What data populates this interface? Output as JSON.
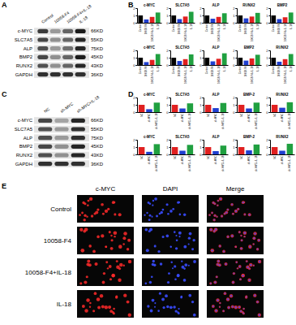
{
  "panel_labels": [
    "A",
    "B",
    "C",
    "D",
    "E"
  ],
  "chart_data": [
    {
      "type": "bar",
      "title": "c-MYC",
      "categories": [
        "Control",
        "10058-F4",
        "10058-F4+IL-18",
        "IL-18"
      ],
      "values": [
        1.0,
        0.45,
        0.8,
        1.4
      ],
      "colors": [
        "#000000",
        "#1f3fd0",
        "#e02020",
        "#20a040"
      ],
      "ylim": [
        0,
        2
      ],
      "yticks": [
        0,
        1,
        2
      ]
    },
    {
      "type": "bar",
      "title": "SLC7A5",
      "categories": [
        "Control",
        "10058-F4",
        "10058-F4+IL-18",
        "IL-18"
      ],
      "values": [
        1.0,
        0.5,
        0.85,
        1.5
      ],
      "colors": [
        "#000000",
        "#1f3fd0",
        "#e02020",
        "#20a040"
      ],
      "ylim": [
        0,
        2
      ],
      "yticks": [
        0,
        1,
        2
      ]
    },
    {
      "type": "bar",
      "title": "ALP",
      "categories": [
        "Control",
        "10058-F4",
        "10058-F4+IL-18",
        "IL-18"
      ],
      "values": [
        1.0,
        0.55,
        0.8,
        1.3
      ],
      "colors": [
        "#000000",
        "#1f3fd0",
        "#e02020",
        "#20a040"
      ],
      "ylim": [
        0,
        2
      ],
      "yticks": [
        0,
        1,
        2
      ]
    },
    {
      "type": "bar",
      "title": "RUNX2",
      "categories": [
        "Control",
        "10058-F4",
        "10058-F4+IL-18",
        "IL-18"
      ],
      "values": [
        1.0,
        0.6,
        0.85,
        1.35
      ],
      "colors": [
        "#000000",
        "#1f3fd0",
        "#e02020",
        "#20a040"
      ],
      "ylim": [
        0,
        2
      ],
      "yticks": [
        0,
        1,
        2
      ]
    },
    {
      "type": "bar",
      "title": "BMP2",
      "categories": [
        "Control",
        "10058-F4",
        "10058-F4+IL-18",
        "IL-18"
      ],
      "values": [
        1.0,
        0.5,
        0.75,
        1.4
      ],
      "colors": [
        "#000000",
        "#1f3fd0",
        "#e02020",
        "#20a040"
      ],
      "ylim": [
        0,
        2
      ],
      "yticks": [
        0,
        1,
        2
      ]
    },
    {
      "type": "bar",
      "title": "c-MYC",
      "categories": [
        "Control",
        "10058-F4",
        "10058-F4+IL-18",
        "IL-18"
      ],
      "values": [
        1.0,
        0.4,
        0.7,
        1.5
      ],
      "colors": [
        "#000000",
        "#1f3fd0",
        "#e02020",
        "#20a040"
      ],
      "ylim": [
        0,
        2
      ],
      "yticks": [
        0,
        1,
        2
      ]
    },
    {
      "type": "bar",
      "title": "SLC7A5",
      "categories": [
        "Control",
        "10058-F4",
        "10058-F4+IL-18",
        "IL-18"
      ],
      "values": [
        1.0,
        0.55,
        0.8,
        1.45
      ],
      "colors": [
        "#000000",
        "#1f3fd0",
        "#e02020",
        "#20a040"
      ],
      "ylim": [
        0,
        2
      ],
      "yticks": [
        0,
        1,
        2
      ]
    },
    {
      "type": "bar",
      "title": "ALP",
      "categories": [
        "Control",
        "10058-F4",
        "10058-F4+IL-18",
        "IL-18"
      ],
      "values": [
        1.0,
        0.5,
        0.85,
        1.6
      ],
      "colors": [
        "#000000",
        "#1f3fd0",
        "#e02020",
        "#20a040"
      ],
      "ylim": [
        0,
        2
      ],
      "yticks": [
        0,
        1,
        2
      ]
    },
    {
      "type": "bar",
      "title": "BMP2",
      "categories": [
        "Control",
        "10058-F4",
        "10058-F4+IL-18",
        "IL-18"
      ],
      "values": [
        1.0,
        0.6,
        0.9,
        1.4
      ],
      "colors": [
        "#000000",
        "#1f3fd0",
        "#e02020",
        "#20a040"
      ],
      "ylim": [
        0,
        2
      ],
      "yticks": [
        0,
        1,
        2
      ]
    },
    {
      "type": "bar",
      "title": "RUNX2",
      "categories": [
        "Control",
        "10058-F4",
        "10058-F4+IL-18",
        "IL-18"
      ],
      "values": [
        1.0,
        0.45,
        0.8,
        1.5
      ],
      "colors": [
        "#000000",
        "#1f3fd0",
        "#e02020",
        "#20a040"
      ],
      "ylim": [
        0,
        2
      ],
      "yticks": [
        0,
        1,
        2
      ]
    },
    {
      "type": "bar",
      "title": "c-MYC",
      "categories": [
        "NC",
        "sh-MYC",
        "sh-MYC+IL-18"
      ],
      "values": [
        1.0,
        0.4,
        1.3
      ],
      "colors": [
        "#e02020",
        "#1f3fd0",
        "#20a040"
      ],
      "ylim": [
        0,
        2
      ],
      "yticks": [
        0,
        1,
        2
      ]
    },
    {
      "type": "bar",
      "title": "SLC7A5",
      "categories": [
        "NC",
        "sh-MYC",
        "sh-MYC+IL-18"
      ],
      "values": [
        1.0,
        0.5,
        1.2
      ],
      "colors": [
        "#e02020",
        "#1f3fd0",
        "#20a040"
      ],
      "ylim": [
        0,
        2
      ],
      "yticks": [
        0,
        1,
        2
      ]
    },
    {
      "type": "bar",
      "title": "ALP",
      "categories": [
        "NC",
        "sh-MYC",
        "sh-MYC+IL-18"
      ],
      "values": [
        1.0,
        0.55,
        1.25
      ],
      "colors": [
        "#e02020",
        "#1f3fd0",
        "#20a040"
      ],
      "ylim": [
        0,
        2
      ],
      "yticks": [
        0,
        1,
        2
      ]
    },
    {
      "type": "bar",
      "title": "BMP-2",
      "categories": [
        "NC",
        "sh-MYC",
        "sh-MYC+IL-18"
      ],
      "values": [
        1.0,
        0.5,
        1.3
      ],
      "colors": [
        "#e02020",
        "#1f3fd0",
        "#20a040"
      ],
      "ylim": [
        0,
        2
      ],
      "yticks": [
        0,
        1,
        2
      ]
    },
    {
      "type": "bar",
      "title": "RUNX2",
      "categories": [
        "NC",
        "sh-MYC",
        "sh-MYC+IL-18"
      ],
      "values": [
        1.0,
        0.6,
        1.35
      ],
      "colors": [
        "#e02020",
        "#1f3fd0",
        "#20a040"
      ],
      "ylim": [
        0,
        2
      ],
      "yticks": [
        0,
        1,
        2
      ]
    },
    {
      "type": "bar",
      "title": "c-MYC",
      "categories": [
        "NC",
        "sh-MYC",
        "sh-MYC+IL-18"
      ],
      "values": [
        1.0,
        0.35,
        1.4
      ],
      "colors": [
        "#e02020",
        "#1f3fd0",
        "#20a040"
      ],
      "ylim": [
        0,
        2
      ],
      "yticks": [
        0,
        1,
        2
      ]
    },
    {
      "type": "bar",
      "title": "SLC7A5",
      "categories": [
        "NC",
        "sh-MYC",
        "sh-MYC+IL-18"
      ],
      "values": [
        1.0,
        0.5,
        1.3
      ],
      "colors": [
        "#e02020",
        "#1f3fd0",
        "#20a040"
      ],
      "ylim": [
        0,
        2
      ],
      "yticks": [
        0,
        1,
        2
      ]
    },
    {
      "type": "bar",
      "title": "ALP",
      "categories": [
        "NC",
        "sh-MYC",
        "sh-MYC+IL-18"
      ],
      "values": [
        1.0,
        0.45,
        1.2
      ],
      "colors": [
        "#e02020",
        "#1f3fd0",
        "#20a040"
      ],
      "ylim": [
        0,
        2
      ],
      "yticks": [
        0,
        1,
        2
      ]
    },
    {
      "type": "bar",
      "title": "BMP-2",
      "categories": [
        "NC",
        "sh-MYC",
        "sh-MYC+IL-18"
      ],
      "values": [
        1.0,
        0.55,
        1.35
      ],
      "colors": [
        "#e02020",
        "#1f3fd0",
        "#20a040"
      ],
      "ylim": [
        0,
        2
      ],
      "yticks": [
        0,
        1,
        2
      ]
    },
    {
      "type": "bar",
      "title": "RUNX2",
      "categories": [
        "NC",
        "sh-MYC",
        "sh-MYC+IL-18"
      ],
      "values": [
        1.0,
        0.5,
        1.45
      ],
      "colors": [
        "#e02020",
        "#1f3fd0",
        "#20a040"
      ],
      "ylim": [
        0,
        2
      ],
      "yticks": [
        0,
        1,
        2
      ]
    }
  ],
  "blots": [
    {
      "lanes": [
        "Control",
        "10058-F4",
        "10058-F4+IL-18",
        "IL-18"
      ],
      "proteins": [
        {
          "name": "c-MYC",
          "size": "66KD",
          "bands": [
            0.8,
            0.35,
            0.6,
            0.95
          ]
        },
        {
          "name": "SLC7A5",
          "size": "55KD",
          "bands": [
            0.75,
            0.4,
            0.6,
            0.9
          ]
        },
        {
          "name": "ALP",
          "size": "75KD",
          "bands": [
            0.7,
            0.35,
            0.55,
            0.9
          ]
        },
        {
          "name": "BMP2",
          "size": "45KD",
          "bands": [
            0.75,
            0.4,
            0.6,
            0.95
          ]
        },
        {
          "name": "RUNX2",
          "size": "43KD",
          "bands": [
            0.7,
            0.4,
            0.6,
            0.9
          ]
        },
        {
          "name": "GAPDH",
          "size": "36KD",
          "bands": [
            0.85,
            0.85,
            0.85,
            0.85
          ]
        }
      ]
    },
    {
      "lanes": [
        "NC",
        "sh-MYC",
        "sh-MYC+IL-18"
      ],
      "proteins": [
        {
          "name": "c-MYC",
          "size": "66KD",
          "bands": [
            0.75,
            0.3,
            0.9
          ]
        },
        {
          "name": "SLC7A5",
          "size": "55KD",
          "bands": [
            0.7,
            0.35,
            0.85
          ]
        },
        {
          "name": "ALP",
          "size": "75KD",
          "bands": [
            0.7,
            0.35,
            0.85
          ]
        },
        {
          "name": "BMP2",
          "size": "45KD",
          "bands": [
            0.75,
            0.4,
            0.9
          ]
        },
        {
          "name": "RUNX2",
          "size": "43KD",
          "bands": [
            0.7,
            0.4,
            0.9
          ]
        },
        {
          "name": "GAPDH",
          "size": "36KD",
          "bands": [
            0.85,
            0.85,
            0.85
          ]
        }
      ]
    }
  ],
  "images": {
    "columns": [
      "c-MYC",
      "DAPI",
      "Merge"
    ],
    "rows": [
      "Control",
      "10058-F4",
      "10058-F4+IL-18",
      "IL-18"
    ]
  }
}
